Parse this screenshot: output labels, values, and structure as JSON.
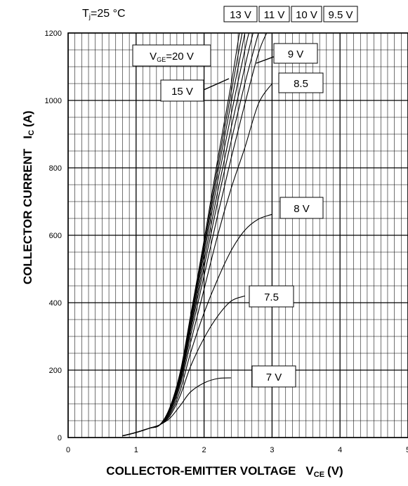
{
  "chart_data": {
    "type": "line",
    "title": "",
    "condition_label": "T j =25 °C",
    "xlabel": "COLLECTOR-EMITTER VOLTAGE   V CE (V)",
    "ylabel": "COLLECTOR CURRENT   I C (A)",
    "xlim": [
      0,
      5
    ],
    "ylim": [
      0,
      1200
    ],
    "x_ticks": [
      0,
      1,
      2,
      3,
      4,
      5
    ],
    "y_ticks": [
      0,
      200,
      400,
      600,
      800,
      1000,
      1200
    ],
    "minor_grid": {
      "x_step": 0.1,
      "y_step": 50
    },
    "grid": true,
    "series": [
      {
        "name": "7 V",
        "x": [
          0.8,
          1.0,
          1.2,
          1.35,
          1.5,
          1.65,
          1.8,
          2.0,
          2.2,
          2.4
        ],
        "y": [
          5,
          15,
          28,
          38,
          58,
          95,
          135,
          162,
          175,
          177
        ]
      },
      {
        "name": "7.5",
        "x": [
          0.8,
          1.0,
          1.2,
          1.35,
          1.5,
          1.65,
          1.8,
          2.0,
          2.2,
          2.4,
          2.6
        ],
        "y": [
          5,
          15,
          28,
          38,
          65,
          125,
          210,
          295,
          360,
          405,
          420
        ]
      },
      {
        "name": "8 V",
        "x": [
          0.8,
          1.0,
          1.2,
          1.35,
          1.5,
          1.65,
          1.8,
          2.0,
          2.2,
          2.4,
          2.6,
          2.8,
          3.0
        ],
        "y": [
          5,
          15,
          28,
          38,
          70,
          140,
          250,
          370,
          470,
          555,
          615,
          648,
          662
        ]
      },
      {
        "name": "8.5",
        "x": [
          0.8,
          1.0,
          1.2,
          1.35,
          1.5,
          1.65,
          1.8,
          2.0,
          2.2,
          2.4,
          2.6,
          2.8,
          3.0
        ],
        "y": [
          5,
          15,
          28,
          38,
          75,
          155,
          280,
          440,
          600,
          740,
          860,
          990,
          1050
        ]
      },
      {
        "name": "9 V",
        "x": [
          0.8,
          1.0,
          1.2,
          1.35,
          1.5,
          1.65,
          1.8,
          2.0,
          2.2,
          2.4,
          2.6,
          2.8,
          2.92
        ],
        "y": [
          5,
          15,
          28,
          38,
          80,
          165,
          300,
          480,
          660,
          830,
          990,
          1140,
          1200
        ]
      },
      {
        "name": "9.5 V",
        "x": [
          0.8,
          1.0,
          1.2,
          1.35,
          1.5,
          1.65,
          1.8,
          2.0,
          2.2,
          2.4,
          2.6,
          2.8
        ],
        "y": [
          5,
          15,
          28,
          38,
          82,
          172,
          315,
          505,
          700,
          880,
          1050,
          1200
        ]
      },
      {
        "name": "10 V",
        "x": [
          0.8,
          1.0,
          1.2,
          1.35,
          1.5,
          1.65,
          1.8,
          2.0,
          2.2,
          2.4,
          2.6,
          2.72
        ],
        "y": [
          5,
          15,
          28,
          38,
          85,
          178,
          325,
          525,
          730,
          920,
          1100,
          1200
        ]
      },
      {
        "name": "11 V",
        "x": [
          0.8,
          1.0,
          1.2,
          1.35,
          1.5,
          1.65,
          1.8,
          2.0,
          2.2,
          2.4,
          2.6,
          2.66
        ],
        "y": [
          5,
          15,
          28,
          38,
          87,
          183,
          335,
          545,
          760,
          960,
          1150,
          1200
        ]
      },
      {
        "name": "13 V",
        "x": [
          0.8,
          1.0,
          1.2,
          1.35,
          1.5,
          1.65,
          1.8,
          2.0,
          2.2,
          2.4,
          2.6
        ],
        "y": [
          5,
          15,
          28,
          38,
          89,
          188,
          345,
          560,
          785,
          995,
          1200
        ]
      },
      {
        "name": "15 V",
        "x": [
          0.8,
          1.0,
          1.2,
          1.35,
          1.5,
          1.65,
          1.8,
          2.0,
          2.2,
          2.4,
          2.56
        ],
        "y": [
          5,
          15,
          28,
          38,
          90,
          192,
          352,
          572,
          805,
          1025,
          1200
        ]
      },
      {
        "name": "V GE=20 V",
        "x": [
          0.8,
          1.0,
          1.2,
          1.35,
          1.5,
          1.65,
          1.8,
          2.0,
          2.2,
          2.4,
          2.52
        ],
        "y": [
          5,
          15,
          28,
          38,
          91,
          195,
          360,
          585,
          825,
          1050,
          1200
        ]
      }
    ],
    "annotations": [
      "13 V",
      "11 V",
      "10 V",
      "9.5 V",
      "V GE=20 V",
      "9 V",
      "15 V",
      "8.5",
      "8 V",
      "7.5",
      "7 V"
    ]
  },
  "labels": {
    "tj_main": "T",
    "tj_sub": "j",
    "tj_rest": "=25 °C",
    "top_13": "13 V",
    "top_11": "11 V",
    "top_10": "10 V",
    "top_95": "9.5 V",
    "vge_main": "V",
    "vge_sub": "GE",
    "vge_rest": "=20  V",
    "lbl_9": "9  V",
    "lbl_15": "15  V",
    "lbl_85": "8.5",
    "lbl_8": "8  V",
    "lbl_75": "7.5",
    "lbl_7": "7  V",
    "xlabel_main": "COLLECTOR-EMITTER VOLTAGE",
    "xlabel_sym": "V",
    "xlabel_sub": "CE",
    "xlabel_unit": "(V)",
    "ylabel_main": "COLLECTOR CURRENT",
    "ylabel_sym": "I",
    "ylabel_sub": "C",
    "ylabel_unit": "(A)"
  }
}
